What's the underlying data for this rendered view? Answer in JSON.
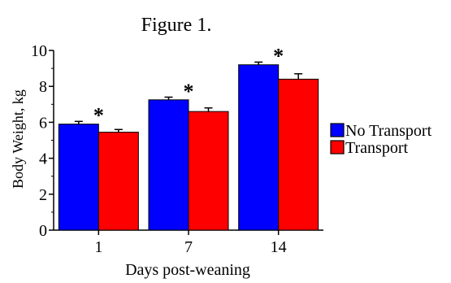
{
  "chart_data": {
    "type": "bar",
    "title": "Figure 1.",
    "xlabel": "Days post-weaning",
    "ylabel": "Body Weight, kg",
    "categories": [
      "1",
      "7",
      "14"
    ],
    "ylim": [
      0,
      10
    ],
    "yticks": [
      "0",
      "2",
      "4",
      "6",
      "8",
      "10"
    ],
    "series": [
      {
        "name": "No Transport",
        "color": "#0000ff",
        "values": [
          5.9,
          7.25,
          9.2
        ],
        "errors": [
          0.15,
          0.15,
          0.15
        ]
      },
      {
        "name": "Transport",
        "color": "#ff0000",
        "values": [
          5.45,
          6.6,
          8.4
        ],
        "errors": [
          0.15,
          0.2,
          0.3
        ]
      }
    ],
    "annotations": [
      "*",
      "*",
      "*"
    ],
    "legend": "right",
    "grid": false
  }
}
